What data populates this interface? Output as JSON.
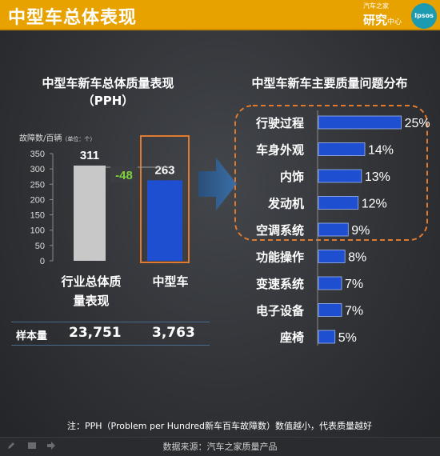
{
  "header": {
    "title": "中型车总体表现"
  },
  "logo": {
    "line1": "汽车之家",
    "line2": "研究",
    "line2_small": "中心",
    "brand": "Ipsos"
  },
  "left_title_line1": "中型车新车总体质量表现",
  "left_title_line2": "（PPH）",
  "right_title": "中型车新车主要质量问题分布",
  "ylabel": "故障数/百辆",
  "ylabel_unit": "（单位：个）",
  "diff_label": "-48",
  "category_labels": [
    "行业总体质\n量表现",
    "中型车"
  ],
  "sample": {
    "label": "样本量",
    "values": [
      "23,751",
      "3,763"
    ]
  },
  "note": "注：PPH（Problem per Hundred新车百车故障数）数值越小，代表质量越好",
  "source": "数据来源：汽车之家质量产品",
  "colors": {
    "header": "#e8a200",
    "gray_bar": "#c8c8c8",
    "blue_bar": "#1f4fd1",
    "highlight_orange": "#e07a2e",
    "arrow": "#2e5a88",
    "diff_green": "#7fd13b"
  },
  "icons": [
    "pencil-icon",
    "screen-icon",
    "arrow-right-icon"
  ],
  "chart_data": [
    {
      "type": "bar",
      "title": "中型车新车总体质量表现（PPH）",
      "categories": [
        "行业总体质量表现",
        "中型车"
      ],
      "values": [
        311,
        263
      ],
      "value_labels": [
        "311",
        "263"
      ],
      "ylabel": "故障数/百辆（单位：个）",
      "ylim": [
        0,
        350
      ],
      "yticks": [
        0,
        50,
        100,
        150,
        200,
        250,
        300,
        350
      ],
      "grid": false
    },
    {
      "type": "bar",
      "orientation": "horizontal",
      "title": "中型车新车主要质量问题分布",
      "categories": [
        "行驶过程",
        "车身外观",
        "内饰",
        "发动机",
        "空调系统",
        "功能操作",
        "变速系统",
        "电子设备",
        "座椅"
      ],
      "values": [
        25,
        14,
        13,
        12,
        9,
        8,
        7,
        7,
        5
      ],
      "value_labels": [
        "25%",
        "14%",
        "13%",
        "12%",
        "9%",
        "8%",
        "7%",
        "7%",
        "5%"
      ],
      "xlim": [
        0,
        30
      ],
      "grid": false
    }
  ]
}
